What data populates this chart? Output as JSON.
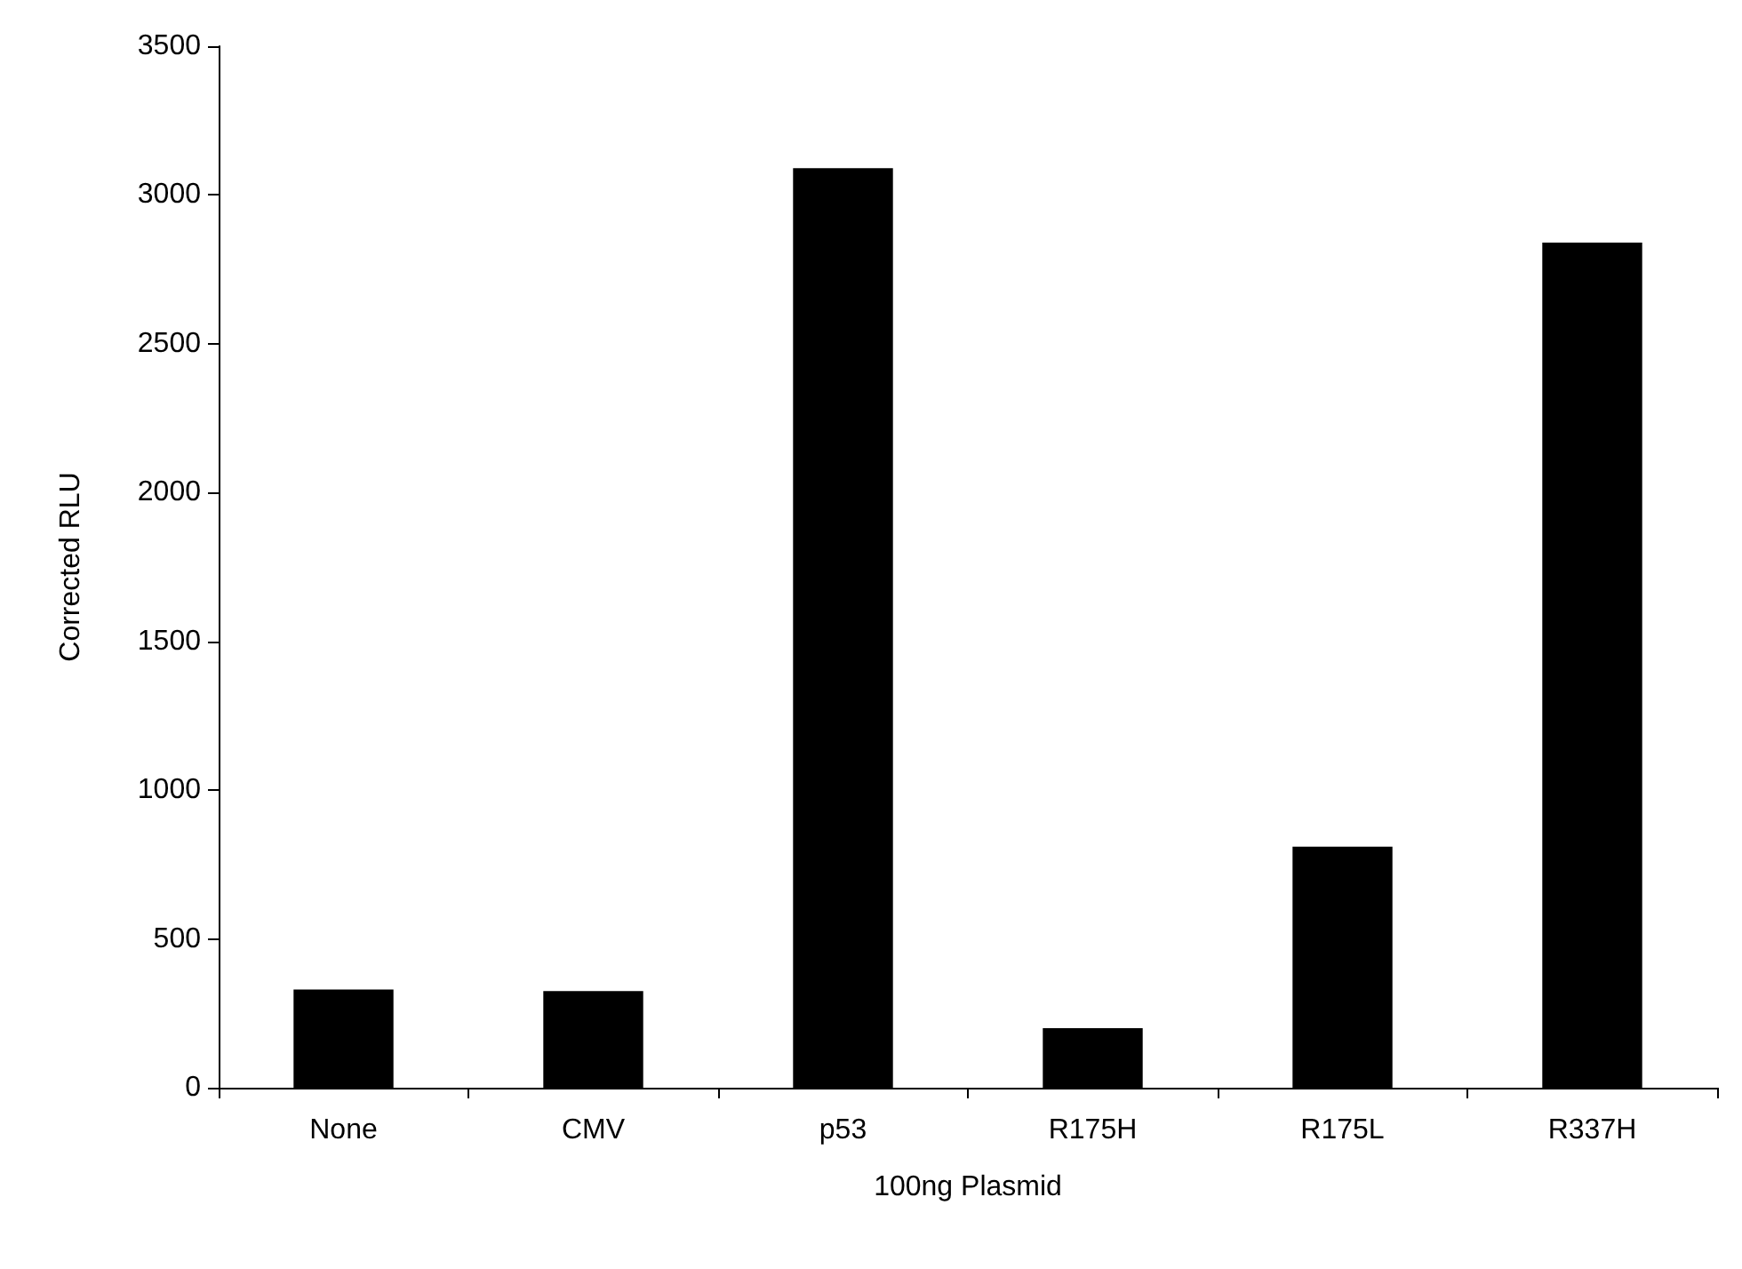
{
  "chart_data": {
    "type": "bar",
    "xlabel": "100ng Plasmid",
    "ylabel": "Corrected RLU",
    "categories": [
      "None",
      "CMV",
      "p53",
      "R175H",
      "R175L",
      "R337H"
    ],
    "values": [
      330,
      325,
      3090,
      200,
      810,
      2840
    ],
    "color": "#000000",
    "ylim": [
      0,
      3500
    ],
    "yticks": [
      0,
      500,
      1000,
      1500,
      2000,
      2500,
      3000,
      3500
    ],
    "grid": false
  }
}
